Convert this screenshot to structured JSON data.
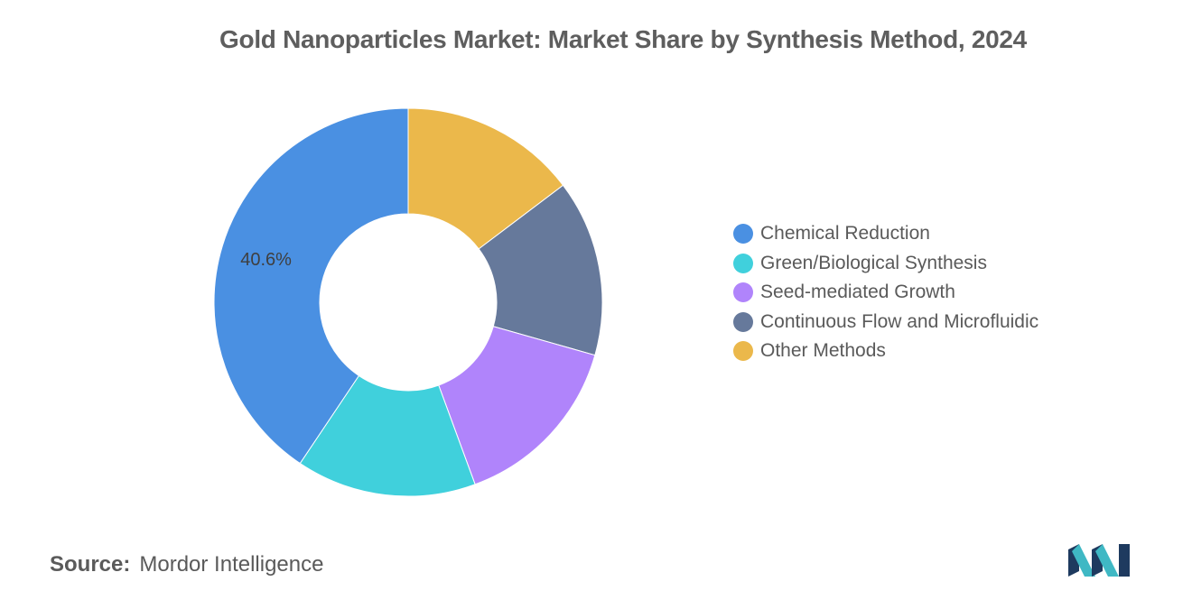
{
  "chart_data": {
    "type": "pie",
    "donut": true,
    "title": "Gold Nanoparticles Market: Market Share by Synthesis Method, 2024",
    "categories": [
      "Chemical Reduction",
      "Green/Biological Synthesis",
      "Seed-mediated Growth",
      "Continuous Flow and Microfluidic",
      "Other Methods"
    ],
    "values": [
      40.6,
      15.0,
      15.0,
      14.7,
      14.7
    ],
    "colors": [
      "#4a90e2",
      "#40d0dc",
      "#b084fb",
      "#66799b",
      "#ebb84b"
    ],
    "data_labels": [
      "40.6%",
      "",
      "",
      "",
      ""
    ],
    "legend_position": "right",
    "start_category_clockwise_from_top": "Other Methods"
  },
  "source": {
    "label": "Source:",
    "value": "Mordor Intelligence"
  },
  "logo": {
    "icon": "mordor-intelligence-logo-icon",
    "colors": [
      "#1e3a5f",
      "#3fb8c4"
    ]
  }
}
